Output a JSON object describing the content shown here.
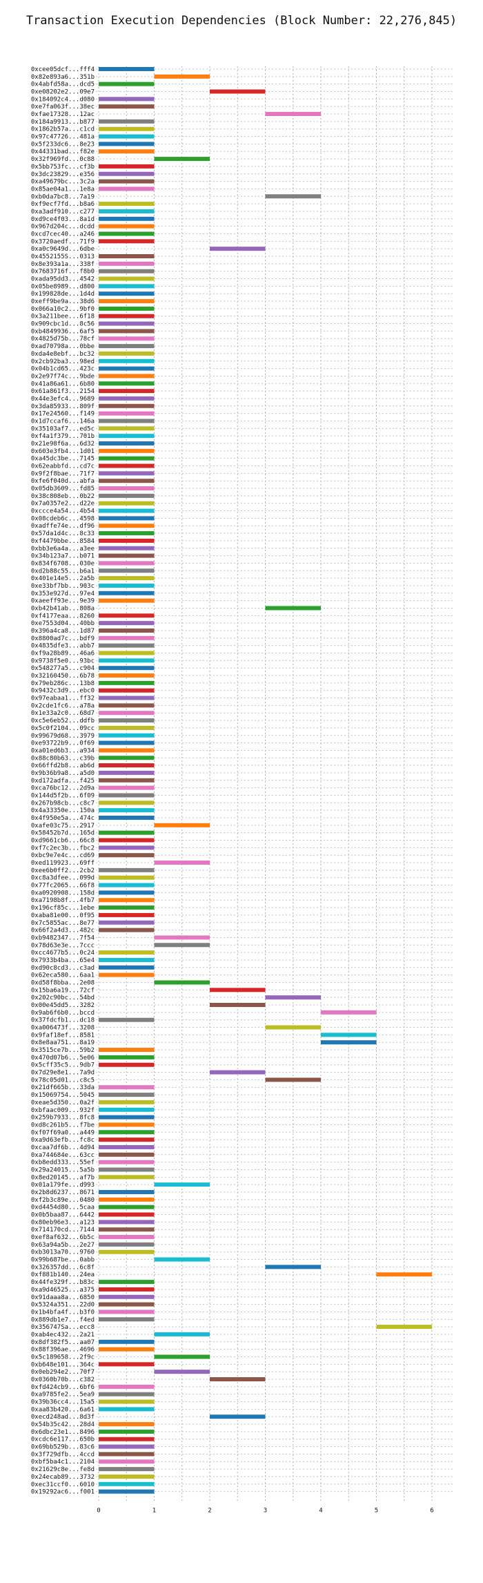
{
  "chart_data": {
    "type": "bar",
    "orientation": "horizontal-gantt",
    "title": "Transaction Execution Dependencies (Block Number: 22,276,845)",
    "xlabel": "",
    "ylabel": "",
    "xlim": [
      0,
      6
    ],
    "xticks": [
      0,
      1,
      2,
      3,
      4,
      5,
      6
    ],
    "grid": "dotted",
    "legend": "none",
    "palette": [
      "#1f77b4",
      "#ff7f0e",
      "#2ca02c",
      "#d62728",
      "#9467bd",
      "#8c564b",
      "#e377c2",
      "#7f7f7f",
      "#bcbd22",
      "#17becf"
    ],
    "transactions": [
      {
        "hash": "0xcee05dcf...fff4",
        "start": 0
      },
      {
        "hash": "0x82e893a6...351b",
        "start": 1
      },
      {
        "hash": "0x4abfd58a...dcd5",
        "start": 0
      },
      {
        "hash": "0xe08202e2...09e7",
        "start": 2
      },
      {
        "hash": "0x184092c4...d080",
        "start": 0
      },
      {
        "hash": "0xe7fa063f...38ec",
        "start": 0
      },
      {
        "hash": "0xfae17328...12ac",
        "start": 3
      },
      {
        "hash": "0x184a9913...b877",
        "start": 0
      },
      {
        "hash": "0x1862b57a...c1cd",
        "start": 0
      },
      {
        "hash": "0x97c47726...481a",
        "start": 0
      },
      {
        "hash": "0x5f233dc6...8e23",
        "start": 0
      },
      {
        "hash": "0x44331bad...f82e",
        "start": 0
      },
      {
        "hash": "0x32f969fd...0c88",
        "start": 1
      },
      {
        "hash": "0x5bb753fc...cf3b",
        "start": 0
      },
      {
        "hash": "0x3dc23829...e356",
        "start": 0
      },
      {
        "hash": "0xa49679bc...3c2a",
        "start": 0
      },
      {
        "hash": "0x85ae04a1...1e8a",
        "start": 0
      },
      {
        "hash": "0xb0da7bc8...7a19",
        "start": 3
      },
      {
        "hash": "0xf9ecf7fd...b8a6",
        "start": 0
      },
      {
        "hash": "0xa3adf910...c277",
        "start": 0
      },
      {
        "hash": "0xd9ce4f03...8a1d",
        "start": 0
      },
      {
        "hash": "0x967d204c...dcdd",
        "start": 0
      },
      {
        "hash": "0xcd7cec40...a246",
        "start": 0
      },
      {
        "hash": "0x3720aedf...71f9",
        "start": 0
      },
      {
        "hash": "0xa0c9649d...6dbe",
        "start": 2
      },
      {
        "hash": "0x4552155S...0313",
        "start": 0
      },
      {
        "hash": "0x8e393a1a...338f",
        "start": 0
      },
      {
        "hash": "0x7683716f...f8b0",
        "start": 0
      },
      {
        "hash": "0xada95dd3...4542",
        "start": 0
      },
      {
        "hash": "0x05be8989...d800",
        "start": 0
      },
      {
        "hash": "0x199828de...1d4d",
        "start": 0
      },
      {
        "hash": "0xeff9be9a...38d6",
        "start": 0
      },
      {
        "hash": "0x066a10c2...9bf0",
        "start": 0
      },
      {
        "hash": "0x3a211bee...6f18",
        "start": 0
      },
      {
        "hash": "0x909cbc1d...8c56",
        "start": 0
      },
      {
        "hash": "0xb4849936...6af5",
        "start": 0
      },
      {
        "hash": "0x4825d75b...78cf",
        "start": 0
      },
      {
        "hash": "0xad70798a...0bbe",
        "start": 0
      },
      {
        "hash": "0xda4e8ebf...bc32",
        "start": 0
      },
      {
        "hash": "0x2cb92ba3...98ed",
        "start": 0
      },
      {
        "hash": "0x04b1cd65...423c",
        "start": 0
      },
      {
        "hash": "0x2e97f74c...9bde",
        "start": 0
      },
      {
        "hash": "0x41a86a61...6b80",
        "start": 0
      },
      {
        "hash": "0x61a861f3...2154",
        "start": 0
      },
      {
        "hash": "0x44e3efc4...9689",
        "start": 0
      },
      {
        "hash": "0x3da85933...809f",
        "start": 0
      },
      {
        "hash": "0x17e24560...f149",
        "start": 0
      },
      {
        "hash": "0x1d7ccaf6...146a",
        "start": 0
      },
      {
        "hash": "0x35103af7...ed5c",
        "start": 0
      },
      {
        "hash": "0xf4a1f379...701b",
        "start": 0
      },
      {
        "hash": "0x21e98f6a...6d32",
        "start": 0
      },
      {
        "hash": "0x603e3fb4...1d01",
        "start": 0
      },
      {
        "hash": "0xa45dc3be...7145",
        "start": 0
      },
      {
        "hash": "0x62eabbfd...cd7c",
        "start": 0
      },
      {
        "hash": "0x9f2f8bae...71f7",
        "start": 0
      },
      {
        "hash": "0xfe6f040d...abfa",
        "start": 0
      },
      {
        "hash": "0x05db3609...fd85",
        "start": 0
      },
      {
        "hash": "0x38c808eb...0b22",
        "start": 0
      },
      {
        "hash": "0x7a0357e2...d22e",
        "start": 0
      },
      {
        "hash": "0xccce4a54...4b54",
        "start": 0
      },
      {
        "hash": "0x08cdeb6c...4598",
        "start": 0
      },
      {
        "hash": "0xadffe74e...df96",
        "start": 0
      },
      {
        "hash": "0x57da1d4c...8c33",
        "start": 0
      },
      {
        "hash": "0xf4479bbe...8584",
        "start": 0
      },
      {
        "hash": "0xbb3e6a4a...a3ee",
        "start": 0
      },
      {
        "hash": "0x34b123a7...b071",
        "start": 0
      },
      {
        "hash": "0x834f6708...030e",
        "start": 0
      },
      {
        "hash": "0xd2b88c55...b6a1",
        "start": 0
      },
      {
        "hash": "0x401e14e5...2a5b",
        "start": 0
      },
      {
        "hash": "0xe33bf7bb...903c",
        "start": 0
      },
      {
        "hash": "0x353e927d...97e4",
        "start": 0
      },
      {
        "hash": "0xaeeff93e...9e39",
        "start": 0
      },
      {
        "hash": "0xb42b41ab...808a",
        "start": 3
      },
      {
        "hash": "0xf4177eaa...8260",
        "start": 0
      },
      {
        "hash": "0xe7553d04...40bb",
        "start": 0
      },
      {
        "hash": "0x396a4ca8...1d87",
        "start": 0
      },
      {
        "hash": "0x8800ad7c...bdf9",
        "start": 0
      },
      {
        "hash": "0x4835dfe3...abb7",
        "start": 0
      },
      {
        "hash": "0xf9a28b89...46a6",
        "start": 0
      },
      {
        "hash": "0x9738f5e0...93bc",
        "start": 0
      },
      {
        "hash": "0x548277a5...c904",
        "start": 0
      },
      {
        "hash": "0x32160450...6b78",
        "start": 0
      },
      {
        "hash": "0x79eb286c...13b8",
        "start": 0
      },
      {
        "hash": "0x9432c3d9...ebc0",
        "start": 0
      },
      {
        "hash": "0x97eabaa1...ff32",
        "start": 0
      },
      {
        "hash": "0x2cde1fc6...a78a",
        "start": 0
      },
      {
        "hash": "0x1e33a2c0...68d7",
        "start": 0
      },
      {
        "hash": "0xc5e6eb52...ddfb",
        "start": 0
      },
      {
        "hash": "0x5c0f2104...09cc",
        "start": 0
      },
      {
        "hash": "0x99679d68...3979",
        "start": 0
      },
      {
        "hash": "0xe93722b9...0f69",
        "start": 0
      },
      {
        "hash": "0xa01ed6b3...a934",
        "start": 0
      },
      {
        "hash": "0x88c80b63...c39b",
        "start": 0
      },
      {
        "hash": "0x66ffd2b8...ab6d",
        "start": 0
      },
      {
        "hash": "0x9b36b9a8...a5d0",
        "start": 0
      },
      {
        "hash": "0xd172adfa...f425",
        "start": 0
      },
      {
        "hash": "0xca76bc12...2d9a",
        "start": 0
      },
      {
        "hash": "0x144d5f2b...6f09",
        "start": 0
      },
      {
        "hash": "0x267b98cb...c8c7",
        "start": 0
      },
      {
        "hash": "0x4a33350e...150a",
        "start": 0
      },
      {
        "hash": "0x4f950e5a...474c",
        "start": 0
      },
      {
        "hash": "0xafe03c75...2917",
        "start": 1
      },
      {
        "hash": "0x58452b7d...165d",
        "start": 0
      },
      {
        "hash": "0xd9661cb6...66c8",
        "start": 0
      },
      {
        "hash": "0xf7c2ec3b...fbc2",
        "start": 0
      },
      {
        "hash": "0xbc9e7e4c...cd69",
        "start": 0
      },
      {
        "hash": "0xed119923...69ff",
        "start": 1
      },
      {
        "hash": "0xee6b0ff2...2cb2",
        "start": 0
      },
      {
        "hash": "0xc8a3dfee...099d",
        "start": 0
      },
      {
        "hash": "0x77fc2065...66f8",
        "start": 0
      },
      {
        "hash": "0xa0920908...158d",
        "start": 0
      },
      {
        "hash": "0xa7198b8f...4fb7",
        "start": 0
      },
      {
        "hash": "0x196cf85c...1ebe",
        "start": 0
      },
      {
        "hash": "0xaba81e00...0f95",
        "start": 0
      },
      {
        "hash": "0x7c5855ac...8e77",
        "start": 0
      },
      {
        "hash": "0x66f2a4d3...482c",
        "start": 0
      },
      {
        "hash": "0xb9482347...7f54",
        "start": 1
      },
      {
        "hash": "0x78d63e3e...7ccc",
        "start": 1
      },
      {
        "hash": "0xcc4677b5...0c24",
        "start": 0
      },
      {
        "hash": "0x7933b4ba...65e4",
        "start": 0
      },
      {
        "hash": "0xd90c8cd3...c3ad",
        "start": 0
      },
      {
        "hash": "0x62eca580...6aa1",
        "start": 0
      },
      {
        "hash": "0xd58f8bba...2e08",
        "start": 1
      },
      {
        "hash": "0x15ba6a19...72cf",
        "start": 2
      },
      {
        "hash": "0x202c90bc...54bd",
        "start": 3
      },
      {
        "hash": "0x00e45dd5...3282",
        "start": 2
      },
      {
        "hash": "0x9ab6f6b0...bccd",
        "start": 4
      },
      {
        "hash": "0x37fdcfb1...dc18",
        "start": 0
      },
      {
        "hash": "0xa006473f...3208",
        "start": 3
      },
      {
        "hash": "0x9faf18ef...8581",
        "start": 4
      },
      {
        "hash": "0x8e8aa751...8a19",
        "start": 4
      },
      {
        "hash": "0x3515ce7b...59b2",
        "start": 0
      },
      {
        "hash": "0x470d07b6...5e06",
        "start": 0
      },
      {
        "hash": "0x5cff35c5...9db7",
        "start": 0
      },
      {
        "hash": "0x7d29e8e1...7a9d",
        "start": 2
      },
      {
        "hash": "0x78c05d01...c8c5",
        "start": 3
      },
      {
        "hash": "0x21df665b...33da",
        "start": 0
      },
      {
        "hash": "0x15069754...5045",
        "start": 0
      },
      {
        "hash": "0xeae5d350...0a2f",
        "start": 0
      },
      {
        "hash": "0xbfaac009...932f",
        "start": 0
      },
      {
        "hash": "0x259b7933...8fc8",
        "start": 0
      },
      {
        "hash": "0xd8c261b5...f7be",
        "start": 0
      },
      {
        "hash": "0xf07f69a0...a449",
        "start": 0
      },
      {
        "hash": "0xa9d63efb...fc8c",
        "start": 0
      },
      {
        "hash": "0xcaa7df6b...4d94",
        "start": 0
      },
      {
        "hash": "0xa744684e...63cc",
        "start": 0
      },
      {
        "hash": "0xb8edd333...55ef",
        "start": 0
      },
      {
        "hash": "0x29a24015...5a5b",
        "start": 0
      },
      {
        "hash": "0x8ed20145...af7b",
        "start": 0
      },
      {
        "hash": "0x01a179fe...d993",
        "start": 1
      },
      {
        "hash": "0x2b8d6237...8671",
        "start": 0
      },
      {
        "hash": "0xf2b3c89e...0480",
        "start": 0
      },
      {
        "hash": "0xd4454d80...5caa",
        "start": 0
      },
      {
        "hash": "0x0b5baa87...6442",
        "start": 0
      },
      {
        "hash": "0x80eb96e3...a123",
        "start": 0
      },
      {
        "hash": "0x714170cd...7144",
        "start": 0
      },
      {
        "hash": "0xef8af632...6b5c",
        "start": 0
      },
      {
        "hash": "0x63a94a5b...2e27",
        "start": 0
      },
      {
        "hash": "0xb3013a70...9760",
        "start": 0
      },
      {
        "hash": "0x99b687be...0abb",
        "start": 1
      },
      {
        "hash": "0x326357dd...6c8f",
        "start": 3
      },
      {
        "hash": "0xf881b140...24ea",
        "start": 5
      },
      {
        "hash": "0x44fe329f...b83c",
        "start": 0
      },
      {
        "hash": "0xa9d46525...a375",
        "start": 0
      },
      {
        "hash": "0x91daaa8a...6850",
        "start": 0
      },
      {
        "hash": "0x5324a351...22d0",
        "start": 0
      },
      {
        "hash": "0x1b4bfa4f...b3f0",
        "start": 0
      },
      {
        "hash": "0x889db1e7...f4ed",
        "start": 0
      },
      {
        "hash": "0x356747Sa...ecc8",
        "start": 5
      },
      {
        "hash": "0xab4ec432...2a21",
        "start": 1
      },
      {
        "hash": "0x8df382f5...aa07",
        "start": 0
      },
      {
        "hash": "0x88f396ae...4696",
        "start": 0
      },
      {
        "hash": "0x5c189658...2f9c",
        "start": 1
      },
      {
        "hash": "0xb648e101...364c",
        "start": 0
      },
      {
        "hash": "0x0eb294e2...70f7",
        "start": 1
      },
      {
        "hash": "0x0360b70b...c382",
        "start": 2
      },
      {
        "hash": "0xfd424cb9...6bf6",
        "start": 0
      },
      {
        "hash": "0xa9785fe2...5ea9",
        "start": 0
      },
      {
        "hash": "0x39b36cc4...15a5",
        "start": 0
      },
      {
        "hash": "0xaa83b420...6a61",
        "start": 0
      },
      {
        "hash": "0xecd248ad...8d3f",
        "start": 2
      },
      {
        "hash": "0x54b35c42...28d4",
        "start": 0
      },
      {
        "hash": "0x6dbc23e1...8496",
        "start": 0
      },
      {
        "hash": "0xcdc6e117...650b",
        "start": 0
      },
      {
        "hash": "0x69bb529b...83c6",
        "start": 0
      },
      {
        "hash": "0x3f729dfb...4ccd",
        "start": 0
      },
      {
        "hash": "0xbf5ba4c1...2104",
        "start": 0
      },
      {
        "hash": "0x21629c8e...fe8d",
        "start": 0
      },
      {
        "hash": "0x24ecab89...3732",
        "start": 0
      },
      {
        "hash": "0xec31ccf0...6010",
        "start": 0
      },
      {
        "hash": "0x19292ac6...f001",
        "start": 0
      }
    ]
  }
}
